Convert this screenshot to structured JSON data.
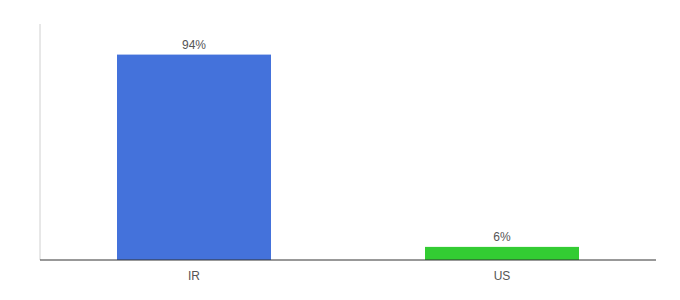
{
  "chart_data": {
    "type": "bar",
    "categories": [
      "IR",
      "US"
    ],
    "values": [
      94,
      6
    ],
    "value_labels": [
      "94%",
      "6%"
    ],
    "colors": [
      "#4472db",
      "#33cc33"
    ],
    "ylim": [
      0,
      108
    ],
    "data_labels": true,
    "tick_labels": "x"
  }
}
